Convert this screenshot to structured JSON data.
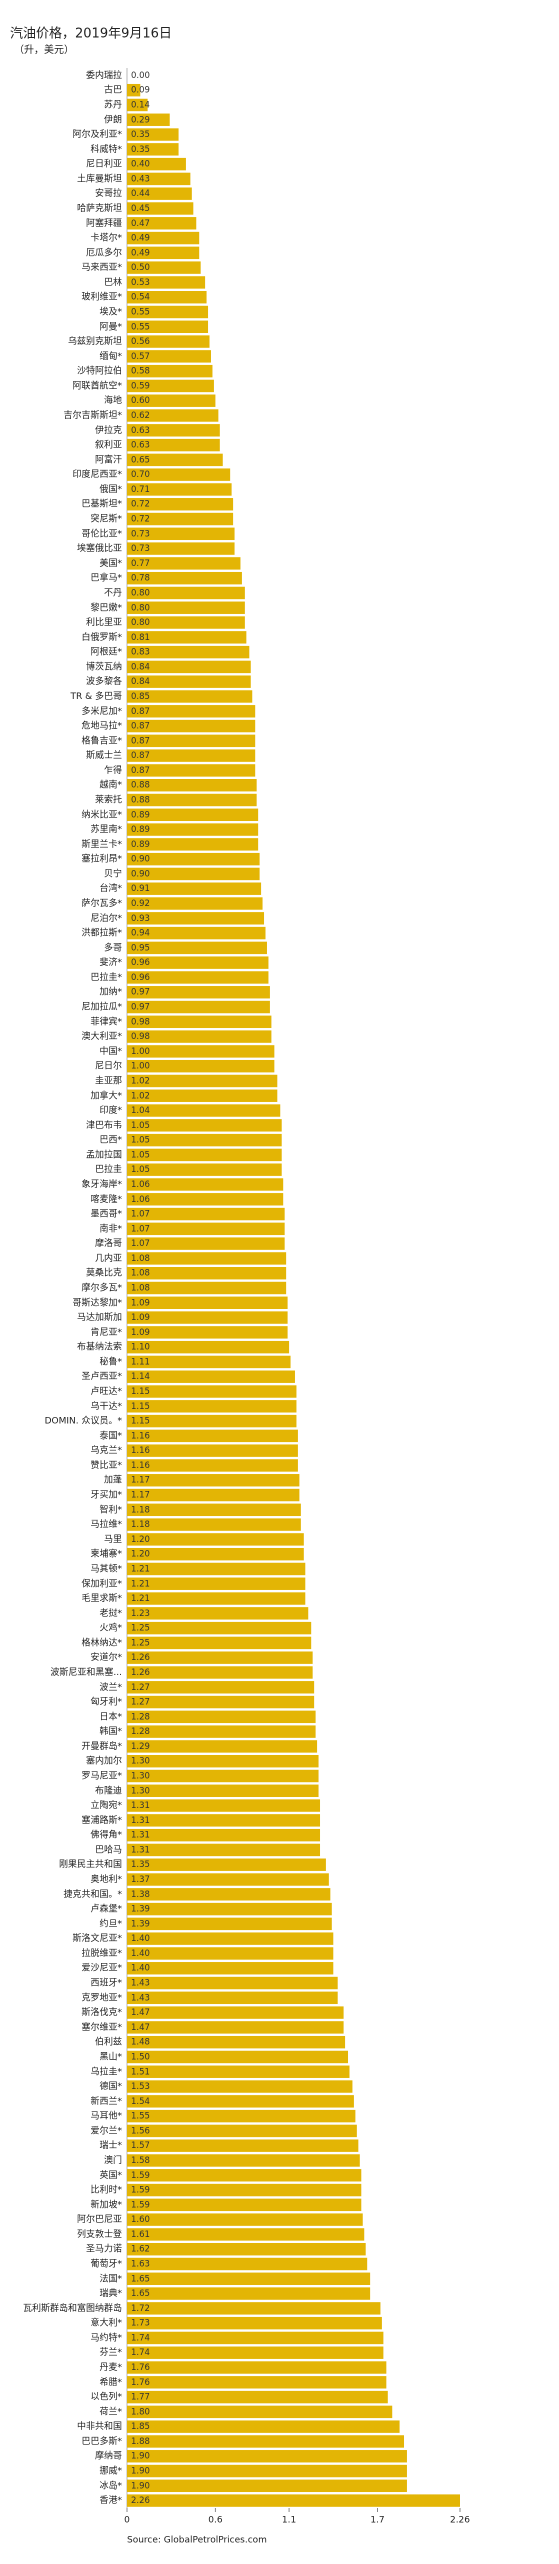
{
  "chart_data": {
    "type": "bar",
    "orientation": "horizontal",
    "title": "汽油价格，2019年9月16日",
    "subtitle": "（升，美元）",
    "source": "Source: GlobalPetrolPrices.com",
    "color": "#e3b505",
    "categories": [
      "委内瑞拉",
      "古巴",
      "苏丹",
      "伊朗",
      "阿尔及利亚*",
      "科威特*",
      "尼日利亚",
      "土库曼斯坦",
      "安哥拉",
      "哈萨克斯坦",
      "阿塞拜疆",
      "卡塔尔*",
      "厄瓜多尔",
      "马来西亚*",
      "巴林",
      "玻利维亚*",
      "埃及*",
      "阿曼*",
      "乌兹别克斯坦",
      "缅甸*",
      "沙特阿拉伯",
      "阿联酋航空*",
      "海地",
      "吉尔吉斯斯坦*",
      "伊拉克",
      "叙利亚",
      "阿富汗",
      "印度尼西亚*",
      "俄国*",
      "巴基斯坦*",
      "突尼斯*",
      "哥伦比亚*",
      "埃塞俄比亚",
      "美国*",
      "巴拿马*",
      "不丹",
      "黎巴嫩*",
      "利比里亚",
      "白俄罗斯*",
      "阿根廷*",
      "博茨瓦纳",
      "波多黎各",
      "TR & 多巴哥",
      "多米尼加*",
      "危地马拉*",
      "格鲁吉亚*",
      "斯威士兰",
      "乍得",
      "越南*",
      "莱索托",
      "纳米比亚*",
      "苏里南*",
      "斯里兰卡*",
      "塞拉利昂*",
      "贝宁",
      "台湾*",
      "萨尔瓦多*",
      "尼泊尔*",
      "洪都拉斯*",
      "多哥",
      "斐济*",
      "巴拉圭*",
      "加纳*",
      "尼加拉瓜*",
      "菲律宾*",
      "澳大利亚*",
      "中国*",
      "尼日尔",
      "圭亚那",
      "加拿大*",
      "印度*",
      "津巴布韦",
      "巴西*",
      "孟加拉国",
      "巴拉圭",
      "象牙海岸*",
      "喀麦隆*",
      "墨西哥*",
      "南非*",
      "摩洛哥",
      "几内亚",
      "莫桑比克",
      "摩尔多瓦*",
      "哥斯达黎加*",
      "马达加斯加",
      "肯尼亚*",
      "布基纳法索",
      "秘鲁*",
      "圣卢西亚*",
      "卢旺达*",
      "乌干达*",
      "DOMIN. 众议员。*",
      "泰国*",
      "乌克兰*",
      "赞比亚*",
      "加蓬",
      "牙买加*",
      "智利*",
      "马拉维*",
      "马里",
      "柬埔寨*",
      "马其顿*",
      "保加利亚*",
      "毛里求斯*",
      "老挝*",
      "火鸡*",
      "格林纳达*",
      "安道尔*",
      "波斯尼亚和黑塞...",
      "波兰*",
      "匈牙利*",
      "日本*",
      "韩国*",
      "开曼群岛*",
      "塞内加尔",
      "罗马尼亚*",
      "布隆迪",
      "立陶宛*",
      "塞浦路斯*",
      "佛得角*",
      "巴哈马",
      "刚果民主共和国",
      "奥地利*",
      "捷克共和国。*",
      "卢森堡*",
      "约旦*",
      "斯洛文尼亚*",
      "拉脱维亚*",
      "爱沙尼亚*",
      "西班牙*",
      "克罗地亚*",
      "斯洛伐克*",
      "塞尔维亚*",
      "伯利兹",
      "黑山*",
      "乌拉圭*",
      "德国*",
      "新西兰*",
      "马耳他*",
      "爱尔兰*",
      "瑞士*",
      "澳门",
      "英国*",
      "比利时*",
      "新加坡*",
      "阿尔巴尼亚",
      "列支敦士登",
      "圣马力诺",
      "葡萄牙*",
      "法国*",
      "瑞典*",
      "瓦利斯群岛和富图纳群岛",
      "意大利*",
      "马约特*",
      "芬兰*",
      "丹麦*",
      "希腊*",
      "以色列*",
      "荷兰*",
      "中非共和国",
      "巴巴多斯*",
      "摩纳哥",
      "挪威*",
      "冰岛*",
      "香港*"
    ],
    "values": [
      0,
      0.09,
      0.14,
      0.29,
      0.35,
      0.35,
      0.4,
      0.43,
      0.44,
      0.45,
      0.47,
      0.49,
      0.49,
      0.5,
      0.53,
      0.54,
      0.55,
      0.55,
      0.56,
      0.57,
      0.58,
      0.59,
      0.6,
      0.62,
      0.63,
      0.63,
      0.65,
      0.7,
      0.71,
      0.72,
      0.72,
      0.73,
      0.73,
      0.77,
      0.78,
      0.8,
      0.8,
      0.8,
      0.81,
      0.83,
      0.84,
      0.84,
      0.85,
      0.87,
      0.87,
      0.87,
      0.87,
      0.87,
      0.88,
      0.88,
      0.89,
      0.89,
      0.89,
      0.9,
      0.9,
      0.91,
      0.92,
      0.93,
      0.94,
      0.95,
      0.96,
      0.96,
      0.97,
      0.97,
      0.98,
      0.98,
      1,
      1,
      1.02,
      1.02,
      1.04,
      1.05,
      1.05,
      1.05,
      1.05,
      1.06,
      1.06,
      1.07,
      1.07,
      1.07,
      1.08,
      1.08,
      1.08,
      1.09,
      1.09,
      1.09,
      1.1,
      1.11,
      1.14,
      1.15,
      1.15,
      1.15,
      1.16,
      1.16,
      1.16,
      1.17,
      1.17,
      1.18,
      1.18,
      1.2,
      1.2,
      1.21,
      1.21,
      1.21,
      1.23,
      1.25,
      1.25,
      1.26,
      1.26,
      1.27,
      1.27,
      1.28,
      1.28,
      1.29,
      1.3,
      1.3,
      1.3,
      1.31,
      1.31,
      1.31,
      1.31,
      1.35,
      1.37,
      1.38,
      1.39,
      1.39,
      1.4,
      1.4,
      1.4,
      1.43,
      1.43,
      1.47,
      1.47,
      1.48,
      1.5,
      1.51,
      1.53,
      1.54,
      1.55,
      1.56,
      1.57,
      1.58,
      1.59,
      1.59,
      1.59,
      1.6,
      1.61,
      1.62,
      1.63,
      1.65,
      1.65,
      1.72,
      1.73,
      1.74,
      1.74,
      1.76,
      1.76,
      1.77,
      1.8,
      1.85,
      1.88,
      1.9,
      1.9,
      1.9,
      2.26
    ],
    "value_labels": [
      "0.00",
      "0.09",
      "0.14",
      "0.29",
      "0.35",
      "0.35",
      "0.40",
      "0.43",
      "0.44",
      "0.45",
      "0.47",
      "0.49",
      "0.49",
      "0.50",
      "0.53",
      "0.54",
      "0.55",
      "0.55",
      "0.56",
      "0.57",
      "0.58",
      "0.59",
      "0.60",
      "0.62",
      "0.63",
      "0.63",
      "0.65",
      "0.70",
      "0.71",
      "0.72",
      "0.72",
      "0.73",
      "0.73",
      "0.77",
      "0.78",
      "0.80",
      "0.80",
      "0.80",
      "0.81",
      "0.83",
      "0.84",
      "0.84",
      "0.85",
      "0.87",
      "0.87",
      "0.87",
      "0.87",
      "0.87",
      "0.88",
      "0.88",
      "0.89",
      "0.89",
      "0.89",
      "0.90",
      "0.90",
      "0.91",
      "0.92",
      "0.93",
      "0.94",
      "0.95",
      "0.96",
      "0.96",
      "0.97",
      "0.97",
      "0.98",
      "0.98",
      "1.00",
      "1.00",
      "1.02",
      "1.02",
      "1.04",
      "1.05",
      "1.05",
      "1.05",
      "1.05",
      "1.06",
      "1.06",
      "1.07",
      "1.07",
      "1.07",
      "1.08",
      "1.08",
      "1.08",
      "1.09",
      "1.09",
      "1.09",
      "1.10",
      "1.11",
      "1.14",
      "1.15",
      "1.15",
      "1.15",
      "1.16",
      "1.16",
      "1.16",
      "1.17",
      "1.17",
      "1.18",
      "1.18",
      "1.20",
      "1.20",
      "1.21",
      "1.21",
      "1.21",
      "1.23",
      "1.25",
      "1.25",
      "1.26",
      "1.26",
      "1.27",
      "1.27",
      "1.28",
      "1.28",
      "1.29",
      "1.30",
      "1.30",
      "1.30",
      "1.31",
      "1.31",
      "1.31",
      "1.31",
      "1.35",
      "1.37",
      "1.38",
      "1.39",
      "1.39",
      "1.40",
      "1.40",
      "1.40",
      "1.43",
      "1.43",
      "1.47",
      "1.47",
      "1.48",
      "1.50",
      "1.51",
      "1.53",
      "1.54",
      "1.55",
      "1.56",
      "1.57",
      "1.58",
      "1.59",
      "1.59",
      "1.59",
      "1.60",
      "1.61",
      "1.62",
      "1.63",
      "1.65",
      "1.65",
      "1.72",
      "1.73",
      "1.74",
      "1.74",
      "1.76",
      "1.76",
      "1.77",
      "1.80",
      "1.85",
      "1.88",
      "1.90",
      "1.90",
      "1.90",
      "2.26"
    ],
    "xlim": [
      0,
      2.26
    ],
    "xticks": [
      0,
      0.6,
      1.1,
      1.7,
      2.26
    ]
  }
}
